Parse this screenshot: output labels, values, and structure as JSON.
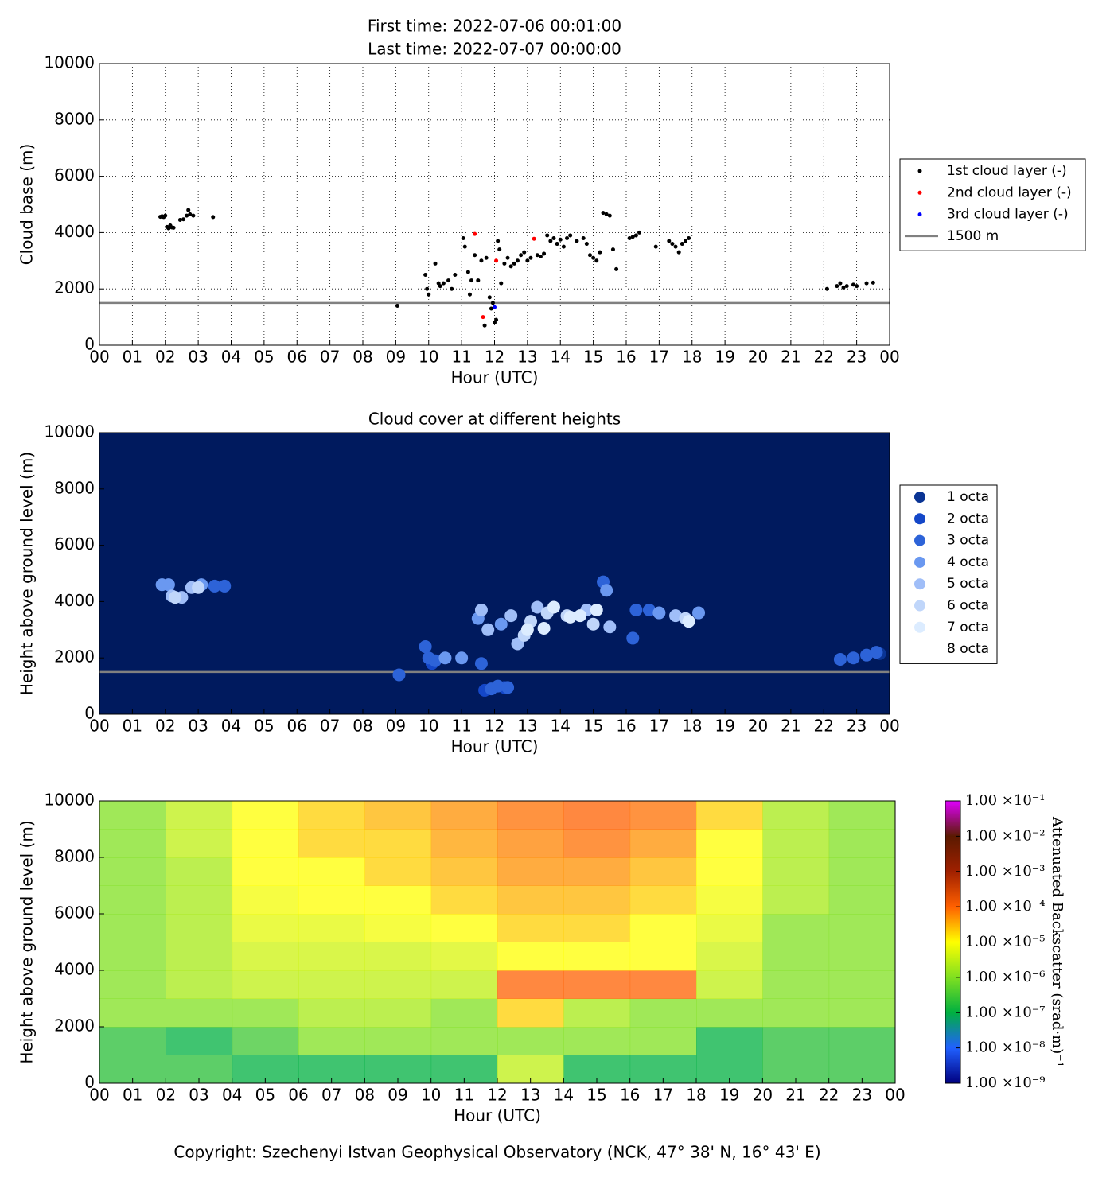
{
  "chart_data": [
    {
      "type": "scatter",
      "title": "First time: 2022-07-06 00:01:00",
      "subtitle": "Last time: 2022-07-07 00:00:00",
      "xlabel": "Hour (UTC)",
      "ylabel": "Cloud base (m)",
      "xlim": [
        0,
        24
      ],
      "ylim": [
        0,
        10000
      ],
      "xticks": [
        {
          "value": 0,
          "label": "00"
        },
        {
          "value": 1,
          "label": "01"
        },
        {
          "value": 2,
          "label": "02"
        },
        {
          "value": 3,
          "label": "03"
        },
        {
          "value": 4,
          "label": "04"
        },
        {
          "value": 5,
          "label": "05"
        },
        {
          "value": 6,
          "label": "06"
        },
        {
          "value": 7,
          "label": "07"
        },
        {
          "value": 8,
          "label": "08"
        },
        {
          "value": 9,
          "label": "09"
        },
        {
          "value": 10,
          "label": "10"
        },
        {
          "value": 11,
          "label": "11"
        },
        {
          "value": 12,
          "label": "12"
        },
        {
          "value": 13,
          "label": "13"
        },
        {
          "value": 14,
          "label": "14"
        },
        {
          "value": 15,
          "label": "15"
        },
        {
          "value": 16,
          "label": "16"
        },
        {
          "value": 17,
          "label": "17"
        },
        {
          "value": 18,
          "label": "18"
        },
        {
          "value": 19,
          "label": "19"
        },
        {
          "value": 20,
          "label": "20"
        },
        {
          "value": 21,
          "label": "21"
        },
        {
          "value": 22,
          "label": "22"
        },
        {
          "value": 23,
          "label": "23"
        },
        {
          "value": 24,
          "label": "00"
        }
      ],
      "yticks": [
        0,
        2000,
        4000,
        6000,
        8000,
        10000
      ],
      "grid": true,
      "legend": "outside-right",
      "series": [
        {
          "name": "1st cloud layer (-)",
          "color": "#000000",
          "x": [
            1.85,
            1.9,
            1.95,
            2.0,
            2.05,
            2.1,
            2.15,
            2.2,
            2.25,
            2.45,
            2.55,
            2.65,
            2.7,
            2.75,
            2.85,
            3.45,
            9.05,
            9.9,
            9.95,
            10.0,
            10.2,
            10.3,
            10.35,
            10.45,
            10.6,
            10.7,
            10.8,
            11.05,
            11.1,
            11.2,
            11.25,
            11.3,
            11.4,
            11.5,
            11.6,
            11.7,
            11.75,
            11.85,
            11.9,
            11.95,
            12.0,
            12.05,
            12.1,
            12.15,
            12.2,
            12.3,
            12.4,
            12.5,
            12.6,
            12.7,
            12.8,
            12.9,
            13.0,
            13.1,
            13.3,
            13.4,
            13.5,
            13.6,
            13.7,
            13.8,
            13.9,
            14.0,
            14.1,
            14.2,
            14.3,
            14.5,
            14.7,
            14.8,
            14.9,
            15.0,
            15.1,
            15.2,
            15.3,
            15.4,
            15.5,
            15.6,
            15.7,
            16.1,
            16.2,
            16.3,
            16.4,
            16.9,
            17.3,
            17.4,
            17.5,
            17.6,
            17.7,
            17.8,
            17.9,
            22.1,
            22.4,
            22.5,
            22.6,
            22.7,
            22.9,
            23.0,
            23.3,
            23.5
          ],
          "values": [
            4560,
            4580,
            4550,
            4600,
            4200,
            4150,
            4250,
            4180,
            4170,
            4450,
            4470,
            4600,
            4800,
            4650,
            4600,
            4550,
            1400,
            2500,
            2000,
            1800,
            2900,
            2200,
            2100,
            2200,
            2300,
            2000,
            2500,
            3800,
            3500,
            2600,
            1800,
            2300,
            3200,
            2300,
            3000,
            700,
            3100,
            1700,
            1300,
            1500,
            800,
            900,
            3700,
            3400,
            2200,
            2900,
            3100,
            2800,
            2900,
            3000,
            3200,
            3300,
            3000,
            3100,
            3200,
            3150,
            3250,
            3900,
            3700,
            3800,
            3600,
            3750,
            3500,
            3800,
            3900,
            3700,
            3800,
            3600,
            3200,
            3100,
            3000,
            3300,
            4700,
            4650,
            4600,
            3400,
            2700,
            3800,
            3850,
            3900,
            4000,
            3500,
            3700,
            3600,
            3500,
            3300,
            3600,
            3700,
            3800,
            2000,
            2100,
            2200,
            2050,
            2100,
            2150,
            2100,
            2200,
            2220
          ]
        },
        {
          "name": "2nd cloud layer (-)",
          "color": "#ff0000",
          "x": [
            11.4,
            11.65,
            12.05,
            13.2
          ],
          "values": [
            3950,
            1000,
            3000,
            3780
          ]
        },
        {
          "name": "3rd cloud layer (-)",
          "color": "#0000ff",
          "x": [
            12.0
          ],
          "values": [
            1350
          ]
        }
      ],
      "hline": {
        "name": "1500 m",
        "value": 1500,
        "color": "#808080"
      }
    },
    {
      "type": "scatter",
      "title": "Cloud cover at different heights",
      "xlabel": "Hour (UTC)",
      "ylabel": "Height above ground level (m)",
      "xlim": [
        0,
        24
      ],
      "ylim": [
        0,
        10000
      ],
      "xticks": [
        {
          "value": 0,
          "label": "00"
        },
        {
          "value": 1,
          "label": "01"
        },
        {
          "value": 2,
          "label": "02"
        },
        {
          "value": 3,
          "label": "03"
        },
        {
          "value": 4,
          "label": "04"
        },
        {
          "value": 5,
          "label": "05"
        },
        {
          "value": 6,
          "label": "06"
        },
        {
          "value": 7,
          "label": "07"
        },
        {
          "value": 8,
          "label": "08"
        },
        {
          "value": 9,
          "label": "09"
        },
        {
          "value": 10,
          "label": "10"
        },
        {
          "value": 11,
          "label": "11"
        },
        {
          "value": 12,
          "label": "12"
        },
        {
          "value": 13,
          "label": "13"
        },
        {
          "value": 14,
          "label": "14"
        },
        {
          "value": 15,
          "label": "15"
        },
        {
          "value": 16,
          "label": "16"
        },
        {
          "value": 17,
          "label": "17"
        },
        {
          "value": 18,
          "label": "18"
        },
        {
          "value": 19,
          "label": "19"
        },
        {
          "value": 20,
          "label": "20"
        },
        {
          "value": 21,
          "label": "21"
        },
        {
          "value": 22,
          "label": "22"
        },
        {
          "value": 23,
          "label": "23"
        },
        {
          "value": 24,
          "label": "00"
        }
      ],
      "yticks": [
        0,
        2000,
        4000,
        6000,
        8000,
        10000
      ],
      "grid": false,
      "legend": "outside-right",
      "background": "#001a5e",
      "series": [
        {
          "name": "1 octa",
          "color": "#0a3494",
          "x": [
            23.7
          ],
          "values": [
            2150
          ]
        },
        {
          "name": "2 octa",
          "color": "#1447c8",
          "x": [
            10.1,
            11.7,
            12.3
          ],
          "values": [
            1800,
            850,
            950
          ]
        },
        {
          "name": "3 octa",
          "color": "#2d63d8",
          "x": [
            9.1,
            9.9,
            10.0,
            10.2,
            11.6,
            11.9,
            12.1,
            12.4,
            15.3,
            16.2,
            16.3,
            16.7,
            22.5,
            22.9,
            23.3,
            23.6,
            3.5,
            3.8
          ],
          "values": [
            1400,
            2400,
            2000,
            1900,
            1800,
            900,
            1000,
            950,
            4700,
            2700,
            3700,
            3700,
            1950,
            2000,
            2100,
            2200,
            4550,
            4550
          ]
        },
        {
          "name": "4 octa",
          "color": "#6a98f0",
          "x": [
            1.9,
            2.1,
            3.1,
            10.5,
            11.0,
            11.5,
            12.2,
            15.4,
            17.0,
            18.2
          ],
          "values": [
            4600,
            4600,
            4600,
            2000,
            2000,
            3400,
            3200,
            4400,
            3600,
            3600
          ]
        },
        {
          "name": "5 octa",
          "color": "#a0bef8",
          "x": [
            2.2,
            2.5,
            2.8,
            11.6,
            11.8,
            12.5,
            12.7,
            13.3,
            14.8,
            15.5,
            17.5
          ],
          "values": [
            4200,
            4150,
            4500,
            3700,
            3000,
            3500,
            2500,
            3800,
            3700,
            3100,
            3500
          ]
        },
        {
          "name": "6 octa",
          "color": "#c0d6fa",
          "x": [
            2.3,
            3.0,
            12.9,
            13.1,
            13.6,
            14.2,
            15.0,
            17.8
          ],
          "values": [
            4150,
            4500,
            2800,
            3300,
            3600,
            3500,
            3200,
            3400
          ]
        },
        {
          "name": "7 octa",
          "color": "#dcecff",
          "x": [
            13.0,
            13.5,
            13.8,
            14.3,
            14.6,
            15.1,
            17.9
          ],
          "values": [
            3000,
            3050,
            3800,
            3450,
            3500,
            3700,
            3300
          ]
        },
        {
          "name": "8 octa",
          "color": "#ffffff",
          "x": [],
          "values": []
        }
      ],
      "hline": {
        "value": 1500,
        "color": "#808080"
      }
    },
    {
      "type": "heatmap",
      "xlabel": "Hour (UTC)",
      "ylabel": "Height above ground level (m)",
      "xlim": [
        0,
        24
      ],
      "ylim": [
        0,
        10000
      ],
      "xticks": [
        {
          "value": 0,
          "label": "00"
        },
        {
          "value": 1,
          "label": "01"
        },
        {
          "value": 2,
          "label": "02"
        },
        {
          "value": 3,
          "label": "03"
        },
        {
          "value": 4,
          "label": "04"
        },
        {
          "value": 5,
          "label": "05"
        },
        {
          "value": 6,
          "label": "06"
        },
        {
          "value": 7,
          "label": "07"
        },
        {
          "value": 8,
          "label": "08"
        },
        {
          "value": 9,
          "label": "09"
        },
        {
          "value": 10,
          "label": "10"
        },
        {
          "value": 11,
          "label": "11"
        },
        {
          "value": 12,
          "label": "12"
        },
        {
          "value": 13,
          "label": "13"
        },
        {
          "value": 14,
          "label": "14"
        },
        {
          "value": 15,
          "label": "15"
        },
        {
          "value": 16,
          "label": "16"
        },
        {
          "value": 17,
          "label": "17"
        },
        {
          "value": 18,
          "label": "18"
        },
        {
          "value": 19,
          "label": "19"
        },
        {
          "value": 20,
          "label": "20"
        },
        {
          "value": 21,
          "label": "21"
        },
        {
          "value": 22,
          "label": "22"
        },
        {
          "value": 23,
          "label": "23"
        },
        {
          "value": 24,
          "label": "00"
        }
      ],
      "yticks": [
        0,
        2000,
        4000,
        6000,
        8000,
        10000
      ],
      "xbins": [
        0,
        2,
        4,
        6,
        8,
        10,
        12,
        14,
        16,
        18,
        20,
        22,
        24
      ],
      "ybins": [
        0,
        1000,
        2000,
        3000,
        4000,
        5000,
        6000,
        7000,
        8000,
        9000,
        10000
      ],
      "z": [
        [
          2e-07,
          2e-07,
          1e-07,
          1e-07,
          1e-07,
          1e-07,
          3e-06,
          1e-07,
          1e-07,
          1e-07,
          2e-07,
          2e-07
        ],
        [
          2e-07,
          1e-07,
          3e-07,
          1e-06,
          1e-06,
          1e-06,
          1e-06,
          1e-06,
          1e-06,
          1e-07,
          2e-07,
          2e-07
        ],
        [
          1e-06,
          1e-06,
          1e-06,
          2e-06,
          2e-06,
          1e-06,
          2e-05,
          2e-06,
          1e-06,
          1e-06,
          1e-06,
          1e-06
        ],
        [
          1e-06,
          2e-06,
          3e-06,
          3e-06,
          3e-06,
          3e-06,
          0.0001,
          0.0001,
          0.0001,
          3e-06,
          1e-06,
          1e-06
        ],
        [
          1e-06,
          2e-06,
          4e-06,
          4e-06,
          4e-06,
          5e-06,
          1e-05,
          1e-05,
          1e-05,
          4e-06,
          1e-06,
          1e-06
        ],
        [
          1e-06,
          2e-06,
          6e-06,
          6e-06,
          8e-06,
          1e-05,
          2e-05,
          2e-05,
          1e-05,
          6e-06,
          1e-06,
          1e-06
        ],
        [
          1e-06,
          2e-06,
          8e-06,
          1e-05,
          1e-05,
          2e-05,
          3e-05,
          3e-05,
          2e-05,
          8e-06,
          2e-06,
          1e-06
        ],
        [
          1e-06,
          2e-06,
          1e-05,
          1e-05,
          2e-05,
          3e-05,
          5e-05,
          5e-05,
          3e-05,
          1e-05,
          2e-06,
          1e-06
        ],
        [
          1e-06,
          3e-06,
          1e-05,
          2e-05,
          2e-05,
          4e-05,
          6e-05,
          8e-05,
          5e-05,
          1e-05,
          2e-06,
          1e-06
        ],
        [
          1e-06,
          3e-06,
          1e-05,
          2e-05,
          3e-05,
          5e-05,
          8e-05,
          0.0001,
          8e-05,
          2e-05,
          2e-06,
          1e-06
        ]
      ],
      "colorbar": {
        "label": "Attenuated Backscatter (srad·m)⁻¹",
        "clim": [
          1e-09,
          0.1
        ],
        "log": true,
        "colors": [
          "#000080",
          "#2060ff",
          "#00b040",
          "#80e020",
          "#ffff00",
          "#ff6000",
          "#a02000",
          "#5a1a00",
          "#e000ff"
        ],
        "ticks": [
          {
            "value": 1e-09,
            "label": "1.00 ×10⁻⁹"
          },
          {
            "value": 1e-08,
            "label": "1.00 ×10⁻⁸"
          },
          {
            "value": 1e-07,
            "label": "1.00 ×10⁻⁷"
          },
          {
            "value": 1e-06,
            "label": "1.00 ×10⁻⁶"
          },
          {
            "value": 1e-05,
            "label": "1.00 ×10⁻⁵"
          },
          {
            "value": 0.0001,
            "label": "1.00 ×10⁻⁴"
          },
          {
            "value": 0.001,
            "label": "1.00 ×10⁻³"
          },
          {
            "value": 0.01,
            "label": "1.00 ×10⁻²"
          },
          {
            "value": 0.1,
            "label": "1.00 ×10⁻¹"
          }
        ]
      }
    }
  ],
  "footer": "Copyright: Szechenyi Istvan Geophysical Observatory (NCK, 47° 38' N, 16° 43' E)"
}
